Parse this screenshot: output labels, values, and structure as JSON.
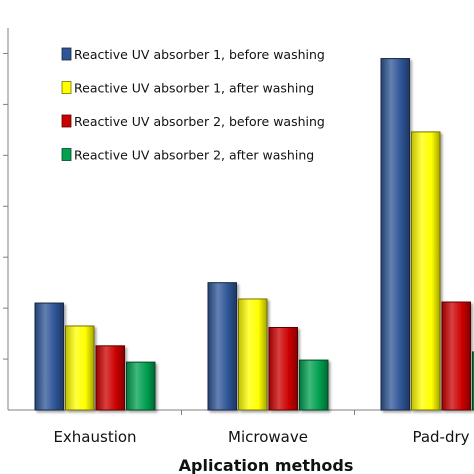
{
  "chart_data": {
    "type": "bar",
    "categories": [
      "Exhaustion",
      "Microwave",
      "Pad-dry"
    ],
    "series": [
      {
        "name": "Reactive UV absorber 1, before washing",
        "color": "#2f5597",
        "values": [
          21,
          25,
          69
        ]
      },
      {
        "name": "Reactive UV absorber 1, after washing",
        "color": "#ffff00",
        "values": [
          16.5,
          21.8,
          54.6
        ]
      },
      {
        "name": "Reactive UV absorber 2, before washing",
        "color": "#cc0000",
        "values": [
          12.6,
          16.2,
          21.2
        ]
      },
      {
        "name": "Reactive UV absorber 2, after washing",
        "color": "#00a050",
        "values": [
          9.4,
          9.8,
          11.4
        ]
      }
    ],
    "xlabel": "Aplication methods",
    "ylabel": "",
    "ylim": [
      0,
      75
    ],
    "ytick_step": 10,
    "grid": false,
    "legend_position": "top-left"
  }
}
